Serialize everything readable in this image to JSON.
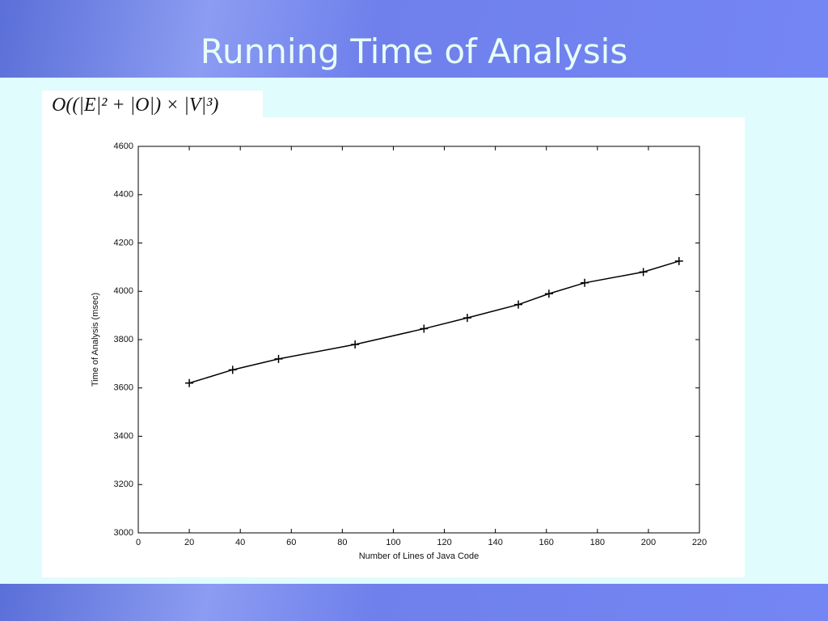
{
  "slide": {
    "title": "Running Time of Analysis",
    "formula": "O((|E|² + |O|) × |V|³)"
  },
  "chart_data": {
    "type": "line",
    "xlabel": "Number of Lines of Java Code",
    "ylabel": "Time of Analysis (msec)",
    "x": [
      20,
      37,
      55,
      85,
      112,
      129,
      149,
      161,
      175,
      198,
      212
    ],
    "series": [
      {
        "color": "#000000",
        "values": [
          3620,
          3675,
          3720,
          3780,
          3845,
          3890,
          3945,
          3990,
          4035,
          4080,
          4125
        ]
      }
    ],
    "xlim": [
      0,
      220
    ],
    "xticks": [
      0,
      20,
      40,
      60,
      80,
      100,
      120,
      140,
      160,
      180,
      200,
      220
    ],
    "ylim": [
      3000,
      4600
    ],
    "yticks": [
      3000,
      3200,
      3400,
      3600,
      3800,
      4000,
      4200,
      4400,
      4600
    ],
    "grid": false
  }
}
